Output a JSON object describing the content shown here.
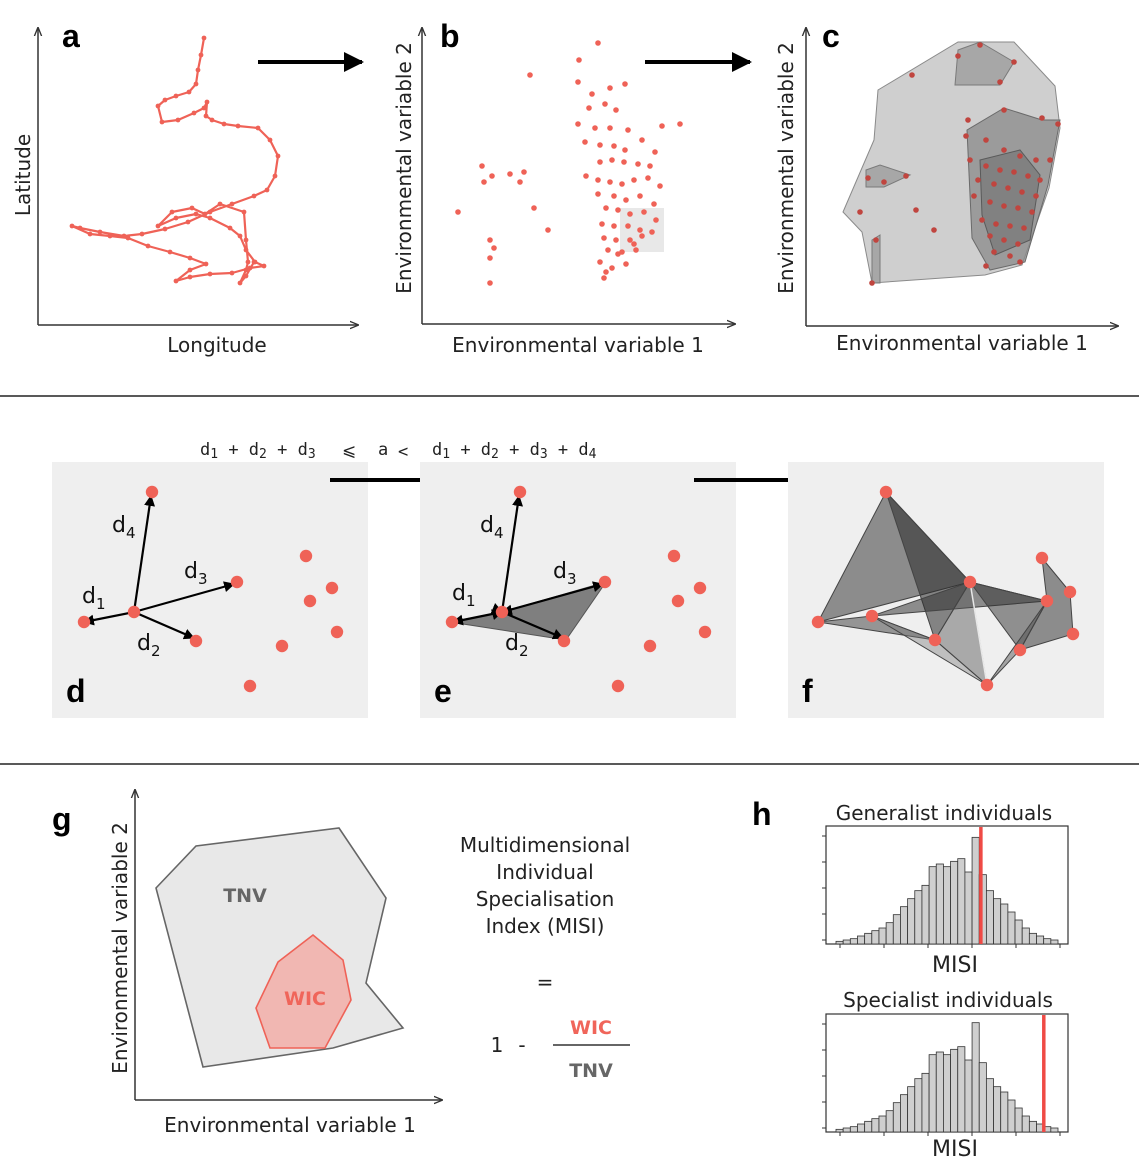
{
  "panel_labels": {
    "a": "a",
    "b": "b",
    "c": "c",
    "d": "d",
    "e": "e",
    "f": "f",
    "g": "g",
    "h": "h"
  },
  "axes": {
    "latitude": "Latitude",
    "longitude": "Longitude",
    "env1": "Environmental variable 1",
    "env2": "Environmental variable 2"
  },
  "formula": {
    "lhs": [
      "d",
      "1",
      " + d",
      "2",
      " + d",
      "3"
    ],
    "op1": "⩽",
    "mid": "a",
    "op2": "<",
    "rhs": [
      "d",
      "1",
      " + d",
      "2",
      " + d",
      "3",
      " + d",
      "4"
    ]
  },
  "distance_labels": [
    {
      "base": "d",
      "sub": "1"
    },
    {
      "base": "d",
      "sub": "2"
    },
    {
      "base": "d",
      "sub": "3"
    },
    {
      "base": "d",
      "sub": "4"
    }
  ],
  "panel_g": {
    "outer_label": "TNV",
    "inner_label": "WIC"
  },
  "misi": {
    "lines": [
      "Multidimensional",
      "Individual",
      "Specialisation",
      "Index (MISI)"
    ],
    "equals": "=",
    "one": "1",
    "minus": "-",
    "numerator": "WIC",
    "denominator": "TNV"
  },
  "histograms": [
    {
      "title": "Generalist individuals",
      "xlabel": "MISI",
      "marker_fraction": 0.64
    },
    {
      "title": "Specialist individuals",
      "xlabel": "MISI",
      "marker_fraction": 0.9
    }
  ],
  "colors": {
    "point": "#ef6257",
    "point_dark": "#c0453f",
    "hull_light": "#c9c9c9",
    "hull_dark": "#5a5a5a",
    "panel_bg": "#efefef",
    "hist_bar": "#cfcfcf",
    "marker": "#ef4a45"
  }
}
